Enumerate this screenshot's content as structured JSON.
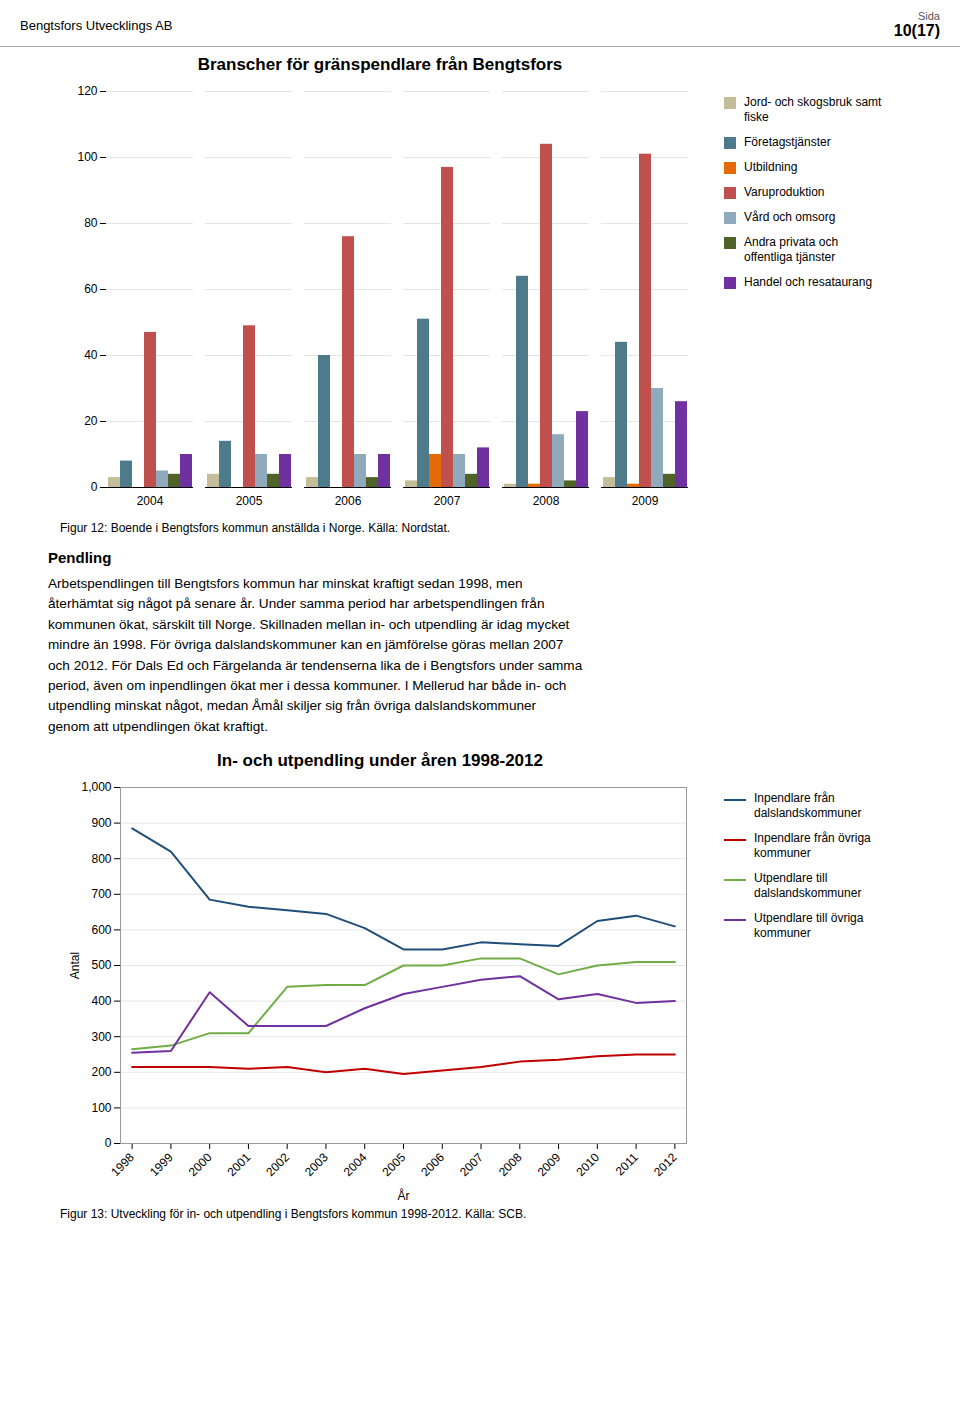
{
  "header": {
    "left": "Bengtsfors Utvecklings AB",
    "right": [
      "Sida",
      "10(17)"
    ]
  },
  "text_section": {
    "heading": "Pendling",
    "body_lines": [
      "Arbetspendlingen till Bengtsfors kommun har minskat kraftigt sedan 1998, men",
      "återhämtat sig något på senare år. Under samma period har arbetspendlingen från",
      "kommunen ökat, särskilt till Norge. Skillnaden mellan in- och utpendling är idag mycket",
      "mindre än 1998. För övriga dalslandskommuner kan en jämförelse göras mellan 2007",
      "och 2012. För Dals Ed och Färgelanda är tendenserna lika de i Bengtsfors under samma",
      "period, även om inpendlingen ökat mer i dessa kommuner. I Mellerud har både in- och",
      "utpendling minskat något, medan Åmål skiljer sig från övriga dalslandskommuner",
      "genom att utpendlingen ökat kraftigt."
    ]
  },
  "chart_data": [
    {
      "type": "bar",
      "title": "Branscher för gränspendlare från Bengtsfors",
      "categories": [
        "2004",
        "2005",
        "2006",
        "2007",
        "2008",
        "2009"
      ],
      "series": [
        {
          "name": "Jord- och skogsbruk samt\nfiske",
          "color": "#c4bd97",
          "values": [
            3,
            4,
            3,
            2,
            1,
            3
          ]
        },
        {
          "name": "Företagstjänster",
          "color": "#4e7b8c",
          "values": [
            8,
            14,
            40,
            51,
            64,
            44
          ]
        },
        {
          "name": "Utbildning",
          "color": "#e36c09",
          "values": [
            0,
            0,
            0,
            10,
            1,
            1
          ]
        },
        {
          "name": "Varuproduktion",
          "color": "#c0504d",
          "values": [
            47,
            49,
            76,
            97,
            104,
            101
          ]
        },
        {
          "name": "Vård och omsorg",
          "color": "#8eaabc",
          "values": [
            5,
            10,
            10,
            10,
            16,
            30
          ]
        },
        {
          "name": "Andra privata och\noffentliga tjänster",
          "color": "#4f6228",
          "values": [
            4,
            4,
            3,
            4,
            2,
            4
          ]
        },
        {
          "name": "Handel och resataurang",
          "color": "#7030a0",
          "values": [
            10,
            10,
            10,
            12,
            23,
            26
          ]
        }
      ],
      "ylim": [
        0,
        120
      ],
      "yticks": [
        0,
        20,
        40,
        60,
        80,
        100,
        120
      ],
      "grid": true,
      "legend": "right",
      "caption": "Figur 12: Boende i Bengtsfors kommun anställda i Norge. Källa: Nordstat."
    },
    {
      "type": "line",
      "title": "In- och utpendling under åren 1998-2012",
      "x": [
        1998,
        1999,
        2000,
        2001,
        2002,
        2003,
        2004,
        2005,
        2006,
        2007,
        2008,
        2009,
        2010,
        2011,
        2012
      ],
      "series": [
        {
          "name": "Inpendlare från\ndalslandskommuner",
          "color": "#1f4e79",
          "values": [
            885,
            820,
            685,
            665,
            655,
            645,
            605,
            545,
            545,
            565,
            560,
            555,
            625,
            640,
            610
          ]
        },
        {
          "name": "Inpendlare från övriga\nkommuner",
          "color": "#c00000",
          "values": [
            215,
            215,
            215,
            210,
            215,
            200,
            210,
            195,
            205,
            215,
            230,
            235,
            245,
            250,
            250
          ]
        },
        {
          "name": "Utpendlare till\ndalslandskommuner",
          "color": "#70ad47",
          "values": [
            265,
            275,
            310,
            310,
            440,
            445,
            445,
            500,
            500,
            520,
            520,
            475,
            500,
            510,
            510
          ]
        },
        {
          "name": "Utpendlare till övriga\nkommuner",
          "color": "#7030a0",
          "values": [
            255,
            260,
            425,
            330,
            330,
            330,
            380,
            420,
            440,
            460,
            470,
            405,
            420,
            395,
            400
          ]
        }
      ],
      "xlim": [
        1997.7,
        2012.3
      ],
      "xticks": [
        1998,
        1999,
        2000,
        2001,
        2002,
        2003,
        2004,
        2005,
        2006,
        2007,
        2008,
        2009,
        2010,
        2011,
        2012
      ],
      "ylim": [
        0,
        1000
      ],
      "yticks": [
        0,
        100,
        200,
        300,
        400,
        500,
        600,
        700,
        800,
        900,
        1000
      ],
      "xlabel": "År",
      "ylabel": "Antal",
      "grid": true,
      "legend": "right",
      "caption": "Figur 13: Utveckling för in- och utpendling i Bengtsfors kommun 1998-2012. Källa: SCB."
    }
  ]
}
